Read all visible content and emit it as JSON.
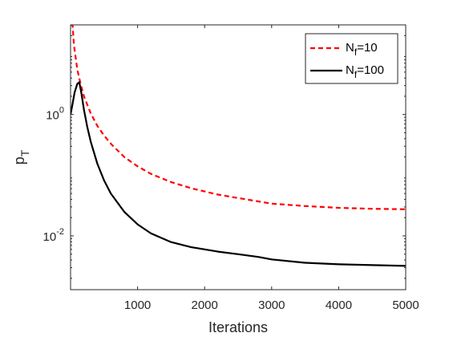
{
  "chart_data": {
    "type": "line",
    "xlabel": "Iterations",
    "ylabel": "p",
    "ylabel_subscript": "T",
    "xlim": [
      0,
      5000
    ],
    "ylim": [
      0.0013,
      30
    ],
    "yscale": "log",
    "grid": false,
    "legend_placement": "top-right",
    "x_ticks": [
      1000,
      2000,
      3000,
      4000,
      5000
    ],
    "x_tick_labels": [
      "1000",
      "2000",
      "3000",
      "4000",
      "5000"
    ],
    "y_ticks": [
      0.01,
      1
    ],
    "y_tick_labels": [
      {
        "base": "10",
        "exp": "-2"
      },
      {
        "base": "10",
        "exp": "0"
      }
    ],
    "series": [
      {
        "name": "N",
        "name_subscript": "f",
        "name_suffix": "=10",
        "color": "#ff0000",
        "style": "dashed",
        "x": [
          0,
          20,
          30,
          50,
          100,
          150,
          200,
          300,
          400,
          500,
          600,
          800,
          1000,
          1200,
          1500,
          1800,
          2000,
          2200,
          2500,
          2800,
          3000,
          3500,
          4000,
          4500,
          5000
        ],
        "y": [
          30,
          30,
          30,
          14,
          5.5,
          3.2,
          2.0,
          1.05,
          0.65,
          0.45,
          0.33,
          0.2,
          0.14,
          0.105,
          0.077,
          0.061,
          0.054,
          0.048,
          0.042,
          0.037,
          0.034,
          0.031,
          0.029,
          0.028,
          0.0275
        ]
      },
      {
        "name": "N",
        "name_subscript": "f",
        "name_suffix": "=100",
        "color": "#000000",
        "style": "solid",
        "x": [
          0,
          30,
          60,
          100,
          130,
          160,
          200,
          250,
          300,
          400,
          500,
          600,
          800,
          1000,
          1200,
          1500,
          1800,
          2000,
          2200,
          2500,
          2800,
          3000,
          3500,
          4000,
          4500,
          5000
        ],
        "y": [
          1.0,
          1.5,
          2.3,
          3.2,
          3.4,
          2.3,
          1.2,
          0.62,
          0.36,
          0.155,
          0.082,
          0.05,
          0.025,
          0.0155,
          0.011,
          0.0079,
          0.0065,
          0.006,
          0.0055,
          0.005,
          0.0045,
          0.0041,
          0.0036,
          0.0034,
          0.0033,
          0.0032
        ]
      }
    ]
  }
}
